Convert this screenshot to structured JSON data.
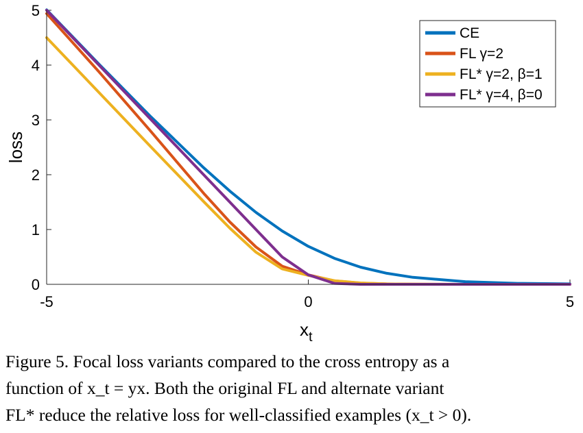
{
  "chart_data": {
    "type": "line",
    "xlabel": "x",
    "xlabel_sub": "t",
    "ylabel": "loss",
    "xlim": [
      -5,
      5
    ],
    "ylim": [
      0,
      5
    ],
    "xticks": [
      "-5",
      "0",
      "5"
    ],
    "yticks": [
      "0",
      "1",
      "2",
      "3",
      "4",
      "5"
    ],
    "legend_position": "top-right",
    "x": [
      -5,
      -4,
      -3,
      -2,
      -1.5,
      -1,
      -0.5,
      0,
      0.5,
      1,
      1.5,
      2,
      3,
      4,
      5
    ],
    "series": [
      {
        "name": "CE",
        "color": "#0072BD",
        "values": [
          5.007,
          4.018,
          3.049,
          2.127,
          1.701,
          1.313,
          0.974,
          0.693,
          0.474,
          0.313,
          0.201,
          0.127,
          0.049,
          0.018,
          0.007
        ]
      },
      {
        "name": "FL γ=2",
        "color": "#D95319",
        "values": [
          4.94,
          3.878,
          2.78,
          1.661,
          1.137,
          0.681,
          0.331,
          0.173,
          0.064,
          0.022,
          0.007,
          0.002,
          0.0001,
          0.0,
          0.0
        ]
      },
      {
        "name": "FL* γ=2, β=1",
        "color": "#EDB120",
        "values": [
          4.5,
          3.5,
          2.5,
          1.51,
          1.025,
          0.586,
          0.283,
          0.164,
          0.066,
          0.025,
          0.008,
          0.002,
          0.0001,
          0.0,
          0.0
        ]
      },
      {
        "name": "FL* γ=4, β=0",
        "color": "#7E2F8E",
        "values": [
          5.0,
          4.0,
          3.0,
          2.0,
          1.5,
          1.0,
          0.5,
          0.173,
          0.018,
          0.0,
          0.0,
          0.0,
          0.0,
          0.0,
          0.0
        ]
      }
    ]
  },
  "caption": {
    "line1": "Figure 5. Focal loss variants compared to the cross entropy as a",
    "line2": "function of x_t = yx. Both the original FL and alternate variant",
    "line3": "FL* reduce the relative loss for well-classified examples (x_t > 0)."
  }
}
